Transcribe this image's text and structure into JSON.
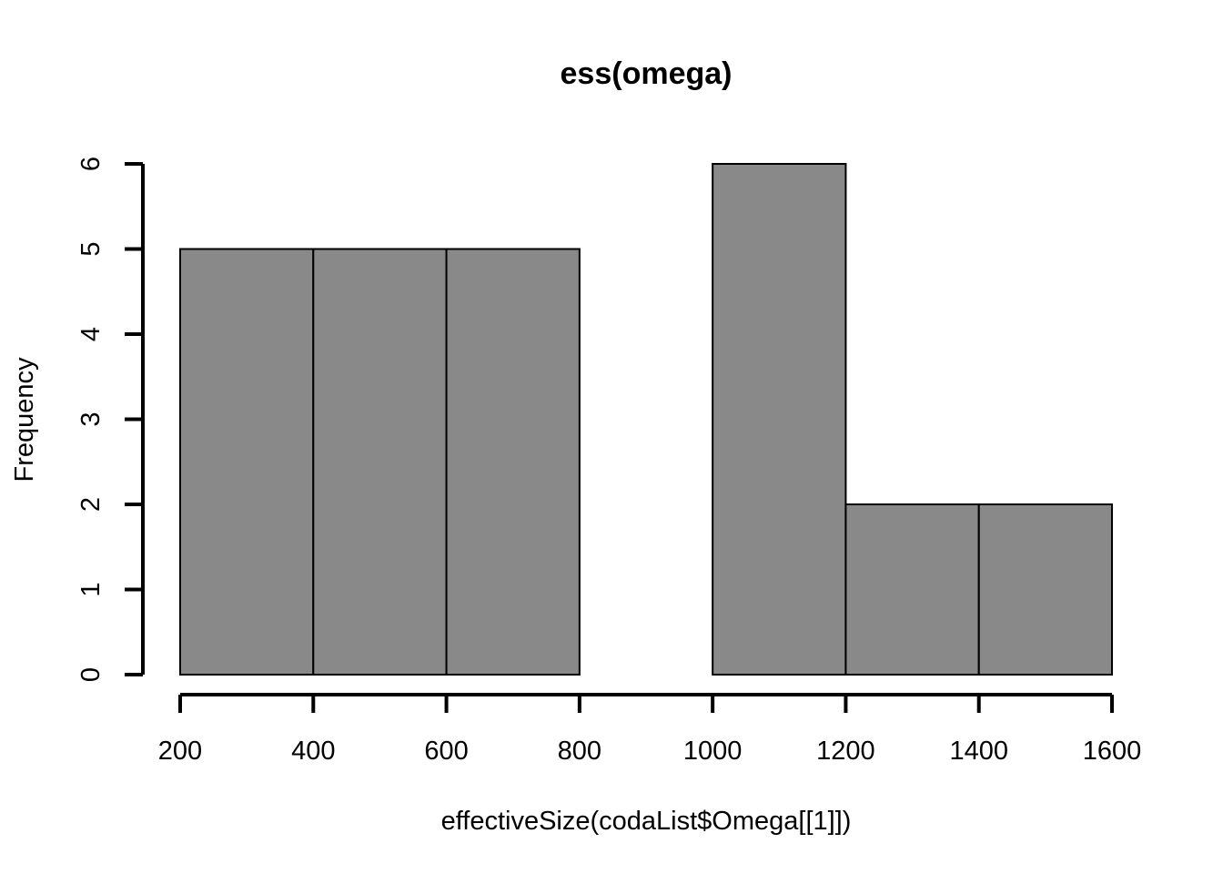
{
  "chart_data": {
    "type": "bar",
    "title": "ess(omega)",
    "xlabel": "effectiveSize(codaList$Omega[[1]])",
    "ylabel": "Frequency",
    "bins": [
      {
        "x0": 200,
        "x1": 400,
        "value": 5
      },
      {
        "x0": 400,
        "x1": 600,
        "value": 5
      },
      {
        "x0": 600,
        "x1": 800,
        "value": 5
      },
      {
        "x0": 800,
        "x1": 1000,
        "value": 0
      },
      {
        "x0": 1000,
        "x1": 1200,
        "value": 6
      },
      {
        "x0": 1200,
        "x1": 1400,
        "value": 2
      },
      {
        "x0": 1400,
        "x1": 1600,
        "value": 2
      }
    ],
    "xlim": [
      200,
      1600
    ],
    "ylim": [
      0,
      6
    ],
    "x_ticks": [
      200,
      400,
      600,
      800,
      1000,
      1200,
      1400,
      1600
    ],
    "x_tick_labels": [
      "200",
      "400",
      "600",
      "800",
      "1000",
      "1200",
      "1400",
      "1600"
    ],
    "y_ticks": [
      0,
      1,
      2,
      3,
      4,
      5,
      6
    ],
    "y_tick_labels": [
      "0",
      "1",
      "2",
      "3",
      "4",
      "5",
      "6"
    ],
    "bar_color": "#898989",
    "grid": false,
    "legend": "none"
  }
}
